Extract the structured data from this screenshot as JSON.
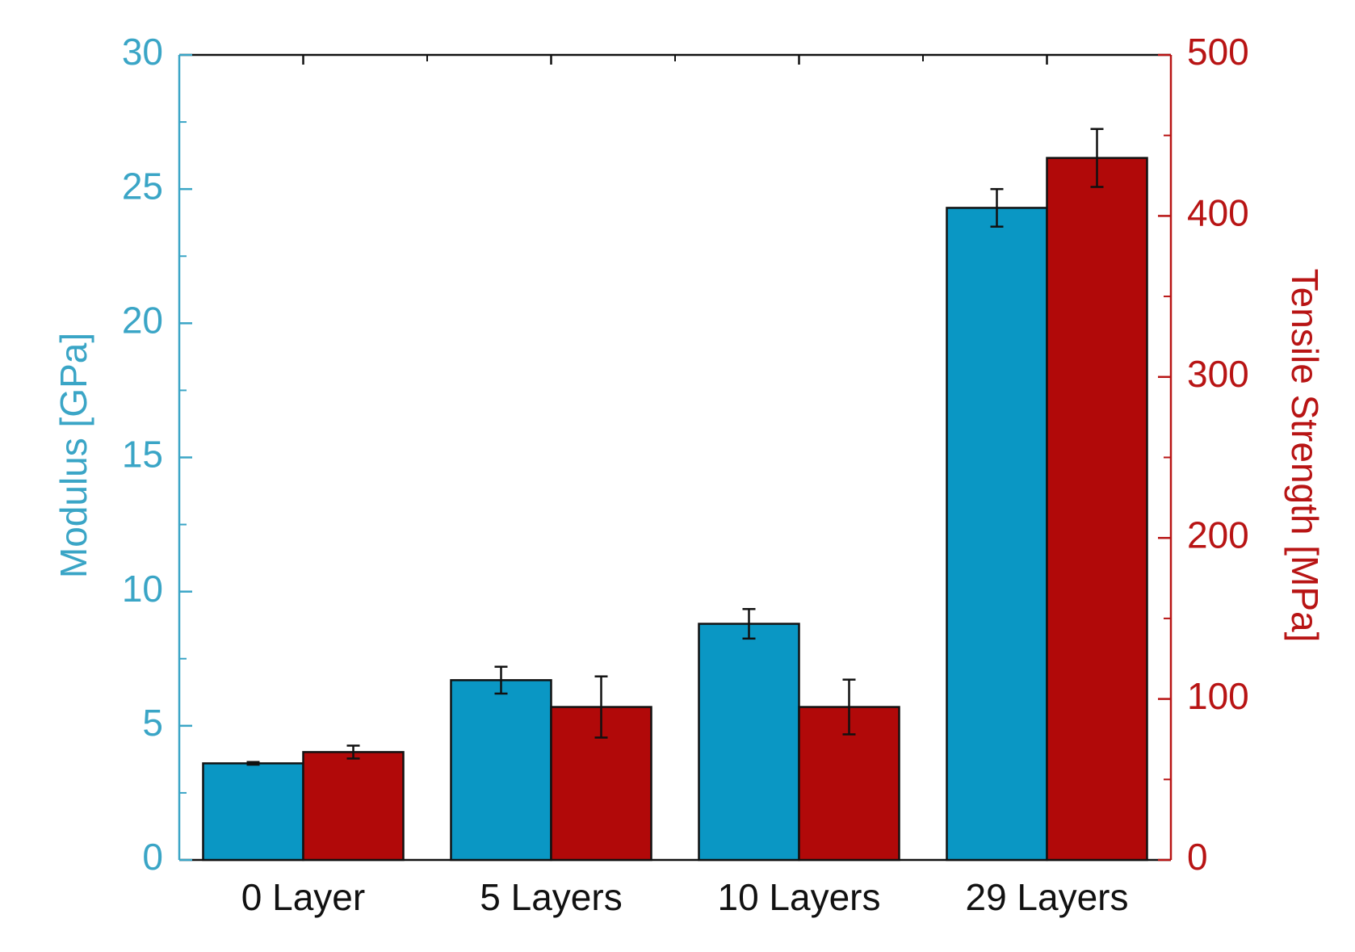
{
  "chart_data": {
    "type": "bar",
    "categories": [
      "0 Layer",
      "5 Layers",
      "10 Layers",
      "29 Layers"
    ],
    "series": [
      {
        "axis": "left",
        "values": [
          3.6,
          6.7,
          8.8,
          24.3
        ],
        "errors": [
          0.05,
          0.5,
          0.55,
          0.7
        ],
        "color": "#0a97c4"
      },
      {
        "axis": "right",
        "values": [
          67,
          95,
          95,
          436
        ],
        "errors": [
          4,
          19,
          17,
          18
        ],
        "color": "#b10909"
      }
    ],
    "ylabel_left": "Modulus [GPa]",
    "ylabel_right": "Tensile Strength [MPa]",
    "ylim_left": [
      0,
      30
    ],
    "ylim_right": [
      0,
      500
    ],
    "yticks_left": [
      "0",
      "5",
      "10",
      "15",
      "20",
      "25",
      "30"
    ],
    "yticks_right": [
      "0",
      "100",
      "200",
      "300",
      "400",
      "500"
    ],
    "left_axis_color": "#3aa5c6",
    "right_axis_color": "#b81414",
    "grid": false,
    "legend": "none"
  }
}
